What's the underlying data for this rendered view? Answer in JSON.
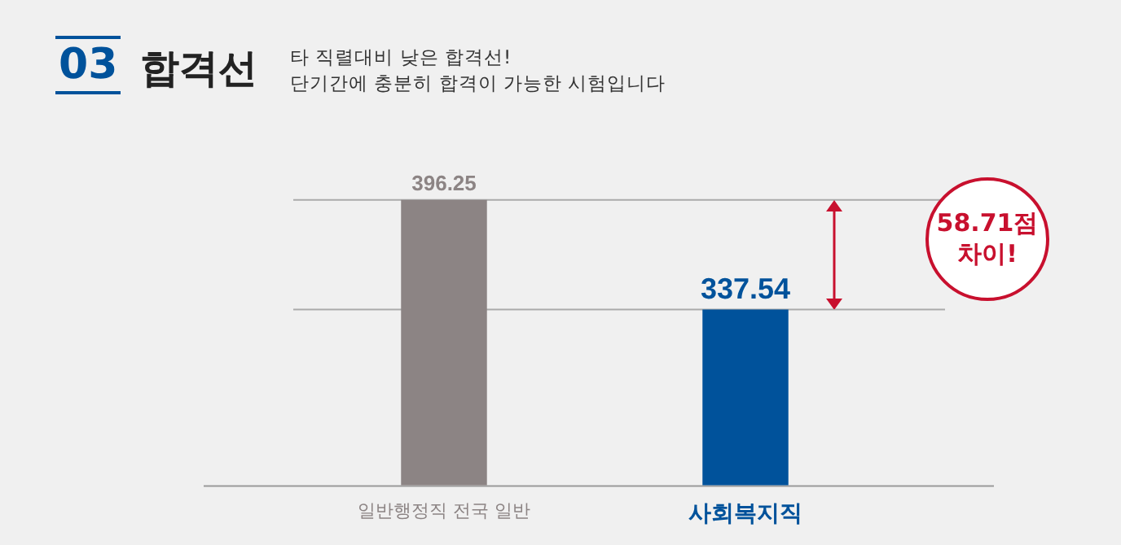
{
  "chart_data": {
    "type": "bar",
    "title": "합격선",
    "subtitle": "타 직렬대비 낮은 합격선!\n단기간에 충분히 합격이 가능한 시험입니다",
    "categories": [
      "일반행정직 전국 일반",
      "사회복지직"
    ],
    "values": [
      396.25,
      337.54
    ],
    "colors": [
      "#8c8484",
      "#00529b"
    ],
    "tick_labels": "x",
    "grid": false,
    "legend": false,
    "data_labels": true,
    "ref_lines": [
      {
        "axis": "y",
        "value": 396.25,
        "color": "#aaaaaa"
      },
      {
        "axis": "y",
        "value": 337.54,
        "color": "#aaaaaa"
      }
    ],
    "annotations": [
      "03",
      "58.71점\n차이!"
    ]
  }
}
